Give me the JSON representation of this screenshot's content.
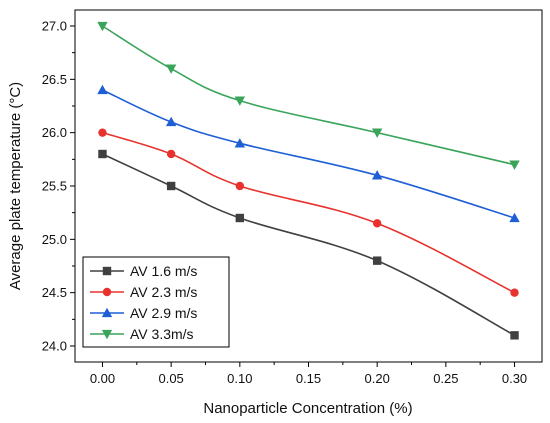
{
  "chart_data": {
    "type": "line",
    "title": "",
    "xlabel": "Nanoparticle Concentration (%)",
    "ylabel": "Average plate temperature (°C)",
    "xlim": [
      -0.02,
      0.32
    ],
    "ylim": [
      23.85,
      27.15
    ],
    "xticks": [
      0.0,
      0.05,
      0.1,
      0.15,
      0.2,
      0.25,
      0.3
    ],
    "xtick_labels": [
      "0.00",
      "0.05",
      "0.10",
      "0.15",
      "0.20",
      "0.25",
      "0.30"
    ],
    "yticks": [
      24.0,
      24.5,
      25.0,
      25.5,
      26.0,
      26.5,
      27.0
    ],
    "ytick_labels": [
      "24.0",
      "24.5",
      "25.0",
      "25.5",
      "26.0",
      "26.5",
      "27.0"
    ],
    "grid": false,
    "legend_position": "bottom-left",
    "x": [
      0.0,
      0.05,
      0.1,
      0.2,
      0.3
    ],
    "series": [
      {
        "name": "AV 1.6 m/s",
        "values": [
          25.8,
          25.5,
          25.2,
          24.8,
          24.1
        ],
        "color": "#404040",
        "marker": "square"
      },
      {
        "name": "AV 2.3 m/s",
        "values": [
          26.0,
          25.8,
          25.5,
          25.15,
          24.5
        ],
        "color": "#e8322d",
        "marker": "circle"
      },
      {
        "name": "AV 2.9 m/s",
        "values": [
          26.4,
          26.1,
          25.9,
          25.6,
          25.2
        ],
        "color": "#1f5fd6",
        "marker": "triangle-up"
      },
      {
        "name": "AV 3.3m/s",
        "values": [
          27.0,
          26.6,
          26.3,
          26.0,
          25.7
        ],
        "color": "#3aa45a",
        "marker": "triangle-down"
      }
    ]
  }
}
